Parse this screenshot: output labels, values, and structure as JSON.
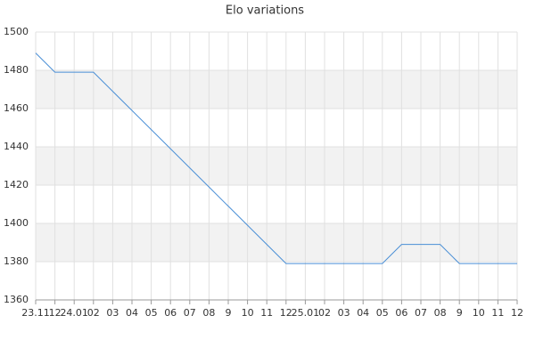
{
  "chart_data": {
    "type": "line",
    "title": "Elo variations",
    "categories": [
      "23.11",
      "12",
      "24.01",
      "02",
      "03",
      "04",
      "05",
      "06",
      "07",
      "08",
      "9",
      "10",
      "11",
      "12",
      "25.01",
      "02",
      "03",
      "04",
      "05",
      "06",
      "07",
      "08",
      "9",
      "10",
      "11",
      "12"
    ],
    "values": [
      1489,
      1479,
      1479,
      1479,
      1469,
      1459,
      1449,
      1439,
      1429,
      1419,
      1409,
      1399,
      1389,
      1379,
      1379,
      1379,
      1379,
      1379,
      1379,
      1389,
      1389,
      1389,
      1379,
      1379,
      1379,
      1379
    ],
    "color": "#4a8fd6",
    "ylim": [
      1360,
      1500
    ],
    "yticks": [
      1360,
      1380,
      1400,
      1420,
      1440,
      1460,
      1480,
      1500
    ],
    "grid": true,
    "alternate_bands": true
  }
}
